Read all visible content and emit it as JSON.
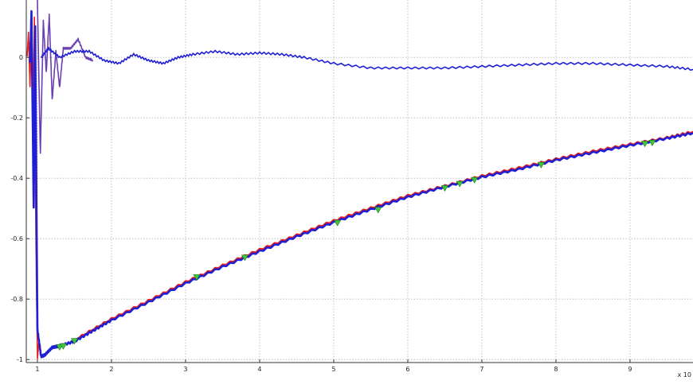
{
  "chart_data": {
    "type": "line",
    "title": "",
    "xlabel": "",
    "ylabel": "",
    "x_exponent_label": "x 10",
    "xlim": [
      0.85,
      9.85
    ],
    "ylim": [
      -1.01,
      0.19
    ],
    "xticks": [
      1,
      2,
      3,
      4,
      5,
      6,
      7,
      8,
      9
    ],
    "yticks": [
      -1,
      -0.8,
      -0.6,
      -0.4,
      -0.2,
      0
    ],
    "xtick_labels": [
      "1",
      "2",
      "3",
      "4",
      "5",
      "6",
      "7",
      "8",
      "9"
    ],
    "ytick_labels": [
      "-1",
      "-0.8",
      "-0.6",
      "-0.4",
      "-0.2",
      "0"
    ],
    "grid": true,
    "colors": {
      "red": "#e8211b",
      "blue": "#1f1fd6",
      "purple": "#6a3fb5",
      "marker": "#3ec63e",
      "grid": "#b5b5b5",
      "axis": "#333333"
    },
    "series": [
      {
        "color": "red",
        "x": [
          0.86,
          0.88,
          0.9,
          0.92,
          0.94,
          0.96,
          0.98,
          1.0,
          1.02,
          1.04
        ],
        "y": [
          0.0,
          0.08,
          -0.1,
          0.12,
          -0.18,
          0.13,
          -0.6,
          -1.0,
          -0.94,
          -0.96
        ]
      },
      {
        "color": "purple",
        "x": [
          1.0,
          1.04,
          1.08,
          1.12,
          1.16,
          1.2,
          1.25,
          1.3,
          1.35,
          1.45,
          1.55,
          1.65,
          1.75
        ],
        "y": [
          0.19,
          -0.32,
          0.12,
          -0.05,
          0.14,
          -0.14,
          0.02,
          -0.1,
          0.03,
          0.03,
          0.06,
          0.0,
          -0.01
        ]
      },
      {
        "color": "blue",
        "x": [
          1.05,
          1.15,
          1.3,
          1.5,
          1.7,
          1.9,
          2.1,
          2.3,
          2.5,
          2.7,
          2.9,
          3.1,
          3.4,
          3.7,
          4.0,
          4.3,
          4.6,
          5.0,
          5.5,
          6.0,
          6.5,
          7.0,
          7.5,
          8.0,
          8.5,
          9.0,
          9.5,
          9.85
        ],
        "y": [
          0.0,
          0.03,
          0.0,
          0.02,
          0.02,
          -0.01,
          -0.02,
          0.01,
          -0.01,
          -0.02,
          0.0,
          0.01,
          0.02,
          0.01,
          0.015,
          0.01,
          0.0,
          -0.02,
          -0.035,
          -0.035,
          -0.035,
          -0.03,
          -0.025,
          -0.02,
          -0.02,
          -0.025,
          -0.03,
          -0.04
        ]
      },
      {
        "color": "red",
        "x": [
          1.5,
          2.0,
          2.5,
          3.0,
          3.5,
          4.0,
          4.5,
          5.0,
          5.5,
          6.0,
          6.5,
          7.0,
          7.5,
          8.0,
          8.5,
          9.0,
          9.5,
          9.85
        ],
        "y": [
          -0.936,
          -0.866,
          -0.806,
          -0.744,
          -0.689,
          -0.637,
          -0.589,
          -0.541,
          -0.499,
          -0.458,
          -0.426,
          -0.393,
          -0.366,
          -0.337,
          -0.311,
          -0.288,
          -0.266,
          -0.246
        ]
      },
      {
        "color": "blue",
        "x": [
          0.9,
          0.92,
          0.95,
          0.97,
          1.0,
          1.05,
          1.1,
          1.2,
          1.3,
          1.5,
          1.75,
          2.0,
          2.5,
          3.0,
          3.5,
          4.0,
          4.5,
          5.0,
          5.5,
          6.0,
          6.5,
          7.0,
          7.5,
          8.0,
          8.5,
          9.0,
          9.5,
          9.85
        ],
        "y": [
          -0.02,
          0.15,
          -0.5,
          0.1,
          -0.9,
          -0.99,
          -0.985,
          -0.96,
          -0.955,
          -0.94,
          -0.905,
          -0.87,
          -0.81,
          -0.748,
          -0.693,
          -0.642,
          -0.593,
          -0.546,
          -0.503,
          -0.462,
          -0.428,
          -0.396,
          -0.37,
          -0.34,
          -0.315,
          -0.291,
          -0.268,
          -0.25
        ]
      }
    ],
    "markers": {
      "color": "marker",
      "x": [
        1.3,
        1.35,
        1.5,
        3.15,
        3.8,
        5.05,
        5.6,
        6.5,
        6.7,
        6.9,
        7.8,
        9.2,
        9.3
      ],
      "y": [
        -0.958,
        -0.955,
        -0.938,
        -0.727,
        -0.662,
        -0.547,
        -0.504,
        -0.432,
        -0.418,
        -0.405,
        -0.355,
        -0.285,
        -0.282
      ]
    }
  }
}
